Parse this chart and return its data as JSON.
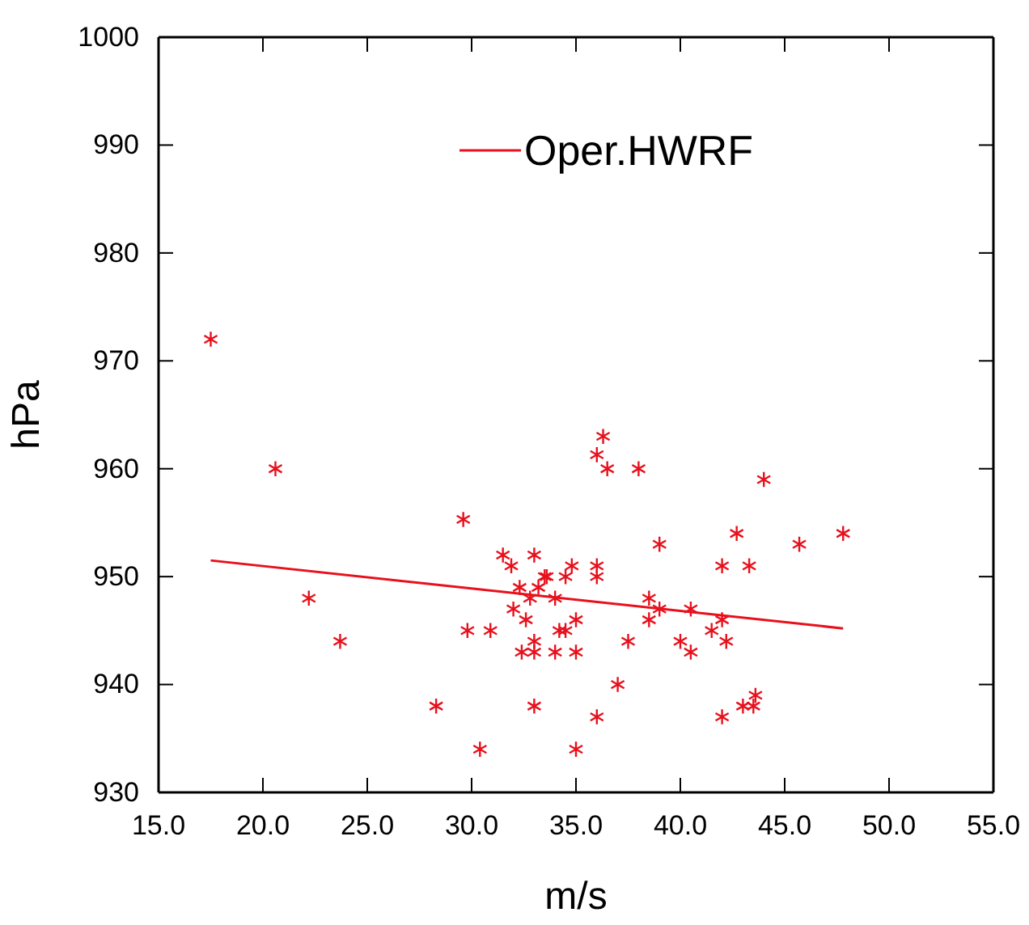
{
  "chart_data": {
    "type": "scatter",
    "xlabel": "m/s",
    "ylabel": "hPa",
    "xlim": [
      15,
      55
    ],
    "ylim": [
      930,
      1000
    ],
    "xticks": [
      {
        "value": 15,
        "label": "15.0"
      },
      {
        "value": 20,
        "label": "20.0"
      },
      {
        "value": 25,
        "label": "25.0"
      },
      {
        "value": 30,
        "label": "30.0"
      },
      {
        "value": 35,
        "label": "35.0"
      },
      {
        "value": 40,
        "label": "40.0"
      },
      {
        "value": 45,
        "label": "45.0"
      },
      {
        "value": 50,
        "label": "50.0"
      },
      {
        "value": 55,
        "label": "55.0"
      }
    ],
    "yticks": [
      930,
      940,
      950,
      960,
      970,
      980,
      990,
      1000
    ],
    "legend": "top right",
    "series": [
      {
        "marker": "cross",
        "color": "#e8101c",
        "x": [
          17.5,
          20.6,
          22.2,
          23.7,
          28.3,
          29.6,
          29.8,
          30.4,
          30.9,
          31.5,
          31.9,
          32,
          32.3,
          32.4,
          32.6,
          32.8,
          33,
          33,
          33,
          33,
          33.2,
          33.5,
          33.6,
          34,
          34,
          34.2,
          34.5,
          34.5,
          34.8,
          35,
          35,
          35,
          36,
          36,
          36,
          36,
          36.3,
          36.5,
          37,
          37.5,
          38,
          38.5,
          38.5,
          39,
          39,
          40,
          40.5,
          40.5,
          41.5,
          42,
          42,
          42,
          42.2,
          42.7,
          43,
          43.3,
          43.5,
          43.6,
          44,
          45.7,
          47.8
        ],
        "values": [
          972,
          960,
          948,
          944,
          938,
          955.3,
          945,
          934,
          945,
          952,
          951,
          947,
          949,
          943,
          946,
          948,
          952,
          944,
          943,
          938,
          949,
          950,
          950,
          943,
          948,
          945,
          945,
          950,
          951,
          946,
          943,
          934,
          961.3,
          951,
          950,
          937,
          963,
          960,
          940,
          944,
          960,
          946,
          948,
          947,
          953,
          944,
          943,
          947,
          945,
          951,
          937,
          946,
          944,
          954,
          938,
          951,
          938,
          939,
          959,
          953,
          954
        ]
      },
      {
        "type": "line",
        "name": "Oper.HWRF",
        "color": "#e8101c",
        "x": [
          17.5,
          47.8
        ],
        "values": [
          951.5,
          945.2
        ]
      }
    ]
  }
}
